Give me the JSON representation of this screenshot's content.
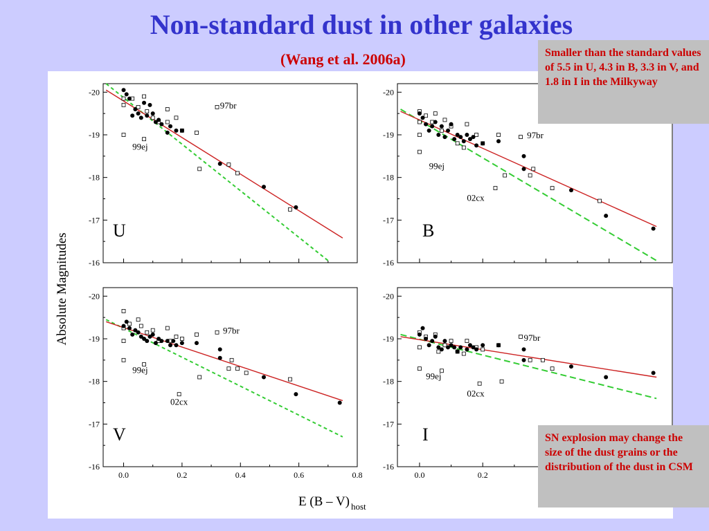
{
  "slide": {
    "title": "Non-standard dust in other galaxies",
    "subtitle": "(Wang et al. 2006a)",
    "note_top": "Smaller than the standard values of 5.5 in U, 4.3 in B, 3.3 in V, and 1.8 in I in the Milkyway",
    "note_bottom": "SN explosion may change the size of the dust grains or the distribution of the dust in CSM"
  },
  "colors": {
    "title": "#3333cc",
    "subtitle": "#cc0000",
    "fit_line": "#cc2222",
    "standard_line": "#33cc33",
    "note_bg": "#c0c0c0",
    "note_text": "#cc0000",
    "background": "#ccccff"
  },
  "chart_data": {
    "type": "scatter",
    "xlabel": "E (B – V)",
    "xlabel_sub": "host",
    "ylabel": "Absolute Magnitudes",
    "xlim": [
      -0.07,
      0.8
    ],
    "ylim": [
      -20.2,
      -16
    ],
    "x_ticks": [
      "0.0",
      "0.2",
      "0.4",
      "0.6",
      "0.8"
    ],
    "y_ticks": [
      "-20",
      "-19",
      "-18",
      "-17",
      "-16"
    ],
    "panels": [
      {
        "band": "U",
        "fit_line": [
          [
            -0.06,
            -20.05
          ],
          [
            0.75,
            -16.58
          ]
        ],
        "standard_line": [
          [
            -0.06,
            -20.2
          ],
          [
            0.7,
            -16.05
          ]
        ],
        "filled": [
          [
            0.0,
            -20.05
          ],
          [
            0.01,
            -19.95
          ],
          [
            0.02,
            -19.85
          ],
          [
            0.03,
            -19.45
          ],
          [
            0.04,
            -19.6
          ],
          [
            0.05,
            -19.5
          ],
          [
            0.06,
            -19.4
          ],
          [
            0.07,
            -19.75
          ],
          [
            0.08,
            -19.45
          ],
          [
            0.09,
            -19.7
          ],
          [
            0.1,
            -19.5
          ],
          [
            0.11,
            -19.3
          ],
          [
            0.12,
            -19.35
          ],
          [
            0.13,
            -19.25
          ],
          [
            0.15,
            -19.05
          ],
          [
            0.16,
            -19.2
          ],
          [
            0.18,
            -19.1
          ],
          [
            0.2,
            -19.1
          ],
          [
            0.33,
            -18.32
          ],
          [
            0.48,
            -17.78
          ],
          [
            0.59,
            -17.3
          ]
        ],
        "open": [
          [
            0.0,
            -19.85
          ],
          [
            0.0,
            -19.7
          ],
          [
            0.0,
            -19.0
          ],
          [
            0.03,
            -19.85
          ],
          [
            0.05,
            -19.65
          ],
          [
            0.07,
            -19.9
          ],
          [
            0.07,
            -18.9
          ],
          [
            0.08,
            -19.55
          ],
          [
            0.1,
            -19.4
          ],
          [
            0.12,
            -19.3
          ],
          [
            0.15,
            -19.6
          ],
          [
            0.15,
            -19.3
          ],
          [
            0.18,
            -19.4
          ],
          [
            0.2,
            -19.1
          ],
          [
            0.25,
            -19.05
          ],
          [
            0.26,
            -18.2
          ],
          [
            0.32,
            -19.65
          ],
          [
            0.36,
            -18.3
          ],
          [
            0.39,
            -18.1
          ],
          [
            0.57,
            -17.25
          ]
        ],
        "labels": [
          {
            "text": "97br",
            "x": 0.33,
            "y": -19.62
          },
          {
            "text": "99ej",
            "x": 0.03,
            "y": -18.65
          }
        ]
      },
      {
        "band": "B",
        "fit_line": [
          [
            -0.06,
            -19.55
          ],
          [
            0.75,
            -16.85
          ]
        ],
        "standard_line": [
          [
            -0.06,
            -19.6
          ],
          [
            0.75,
            -16.05
          ]
        ],
        "filled": [
          [
            0.0,
            -19.5
          ],
          [
            0.01,
            -19.4
          ],
          [
            0.02,
            -19.25
          ],
          [
            0.03,
            -19.1
          ],
          [
            0.04,
            -19.2
          ],
          [
            0.05,
            -19.3
          ],
          [
            0.06,
            -19.0
          ],
          [
            0.07,
            -19.2
          ],
          [
            0.08,
            -18.95
          ],
          [
            0.09,
            -19.1
          ],
          [
            0.1,
            -19.25
          ],
          [
            0.11,
            -18.9
          ],
          [
            0.12,
            -19.0
          ],
          [
            0.13,
            -18.95
          ],
          [
            0.14,
            -18.85
          ],
          [
            0.15,
            -19.0
          ],
          [
            0.16,
            -18.9
          ],
          [
            0.17,
            -18.95
          ],
          [
            0.18,
            -18.75
          ],
          [
            0.2,
            -18.8
          ],
          [
            0.25,
            -18.85
          ],
          [
            0.33,
            -18.5
          ],
          [
            0.33,
            -18.2
          ],
          [
            0.48,
            -17.7
          ],
          [
            0.59,
            -17.1
          ],
          [
            0.74,
            -16.8
          ]
        ],
        "open": [
          [
            0.0,
            -19.55
          ],
          [
            0.0,
            -19.0
          ],
          [
            0.0,
            -18.6
          ],
          [
            0.0,
            -19.3
          ],
          [
            0.02,
            -19.45
          ],
          [
            0.04,
            -19.3
          ],
          [
            0.05,
            -19.5
          ],
          [
            0.07,
            -19.1
          ],
          [
            0.08,
            -19.35
          ],
          [
            0.1,
            -19.2
          ],
          [
            0.12,
            -18.8
          ],
          [
            0.14,
            -18.7
          ],
          [
            0.15,
            -19.25
          ],
          [
            0.18,
            -19.0
          ],
          [
            0.2,
            -18.8
          ],
          [
            0.25,
            -19.0
          ],
          [
            0.27,
            -18.05
          ],
          [
            0.32,
            -18.95
          ],
          [
            0.35,
            -18.05
          ],
          [
            0.36,
            -18.2
          ],
          [
            0.42,
            -17.75
          ],
          [
            0.57,
            -17.45
          ],
          [
            0.24,
            -17.75
          ]
        ],
        "labels": [
          {
            "text": "97br",
            "x": 0.34,
            "y": -18.92
          },
          {
            "text": "99ej",
            "x": 0.03,
            "y": -18.2
          },
          {
            "text": "02cx",
            "x": 0.15,
            "y": -17.45
          }
        ]
      },
      {
        "band": "V",
        "fit_line": [
          [
            -0.06,
            -19.4
          ],
          [
            0.75,
            -17.55
          ]
        ],
        "standard_line": [
          [
            -0.06,
            -19.45
          ],
          [
            0.75,
            -16.7
          ]
        ],
        "filled": [
          [
            0.0,
            -19.3
          ],
          [
            0.01,
            -19.4
          ],
          [
            0.02,
            -19.25
          ],
          [
            0.03,
            -19.1
          ],
          [
            0.04,
            -19.2
          ],
          [
            0.05,
            -19.15
          ],
          [
            0.06,
            -19.05
          ],
          [
            0.07,
            -19.0
          ],
          [
            0.08,
            -18.95
          ],
          [
            0.09,
            -19.05
          ],
          [
            0.1,
            -19.1
          ],
          [
            0.11,
            -18.9
          ],
          [
            0.12,
            -19.0
          ],
          [
            0.13,
            -18.95
          ],
          [
            0.15,
            -18.95
          ],
          [
            0.16,
            -18.85
          ],
          [
            0.17,
            -18.95
          ],
          [
            0.18,
            -18.85
          ],
          [
            0.2,
            -18.9
          ],
          [
            0.25,
            -18.9
          ],
          [
            0.33,
            -18.75
          ],
          [
            0.33,
            -18.55
          ],
          [
            0.48,
            -18.1
          ],
          [
            0.59,
            -17.7
          ],
          [
            0.74,
            -17.5
          ]
        ],
        "open": [
          [
            0.0,
            -19.65
          ],
          [
            0.0,
            -19.25
          ],
          [
            0.0,
            -18.95
          ],
          [
            0.0,
            -18.5
          ],
          [
            0.02,
            -19.35
          ],
          [
            0.05,
            -19.45
          ],
          [
            0.06,
            -19.3
          ],
          [
            0.07,
            -18.4
          ],
          [
            0.08,
            -19.15
          ],
          [
            0.1,
            -19.2
          ],
          [
            0.12,
            -18.95
          ],
          [
            0.15,
            -19.25
          ],
          [
            0.16,
            -18.95
          ],
          [
            0.18,
            -19.05
          ],
          [
            0.2,
            -19.0
          ],
          [
            0.25,
            -19.1
          ],
          [
            0.26,
            -18.1
          ],
          [
            0.32,
            -19.15
          ],
          [
            0.36,
            -18.3
          ],
          [
            0.37,
            -18.5
          ],
          [
            0.39,
            -18.3
          ],
          [
            0.42,
            -18.2
          ],
          [
            0.57,
            -18.05
          ],
          [
            0.19,
            -17.7
          ]
        ],
        "labels": [
          {
            "text": "97br",
            "x": 0.34,
            "y": -19.12
          },
          {
            "text": "99ej",
            "x": 0.03,
            "y": -18.2
          },
          {
            "text": "02cx",
            "x": 0.16,
            "y": -17.45
          }
        ]
      },
      {
        "band": "I",
        "fit_line": [
          [
            -0.06,
            -19.05
          ],
          [
            0.75,
            -18.1
          ]
        ],
        "standard_line": [
          [
            -0.06,
            -19.1
          ],
          [
            0.75,
            -17.6
          ]
        ],
        "filled": [
          [
            0.0,
            -19.1
          ],
          [
            0.01,
            -19.25
          ],
          [
            0.02,
            -19.0
          ],
          [
            0.03,
            -18.85
          ],
          [
            0.04,
            -18.95
          ],
          [
            0.05,
            -19.05
          ],
          [
            0.06,
            -18.8
          ],
          [
            0.07,
            -18.75
          ],
          [
            0.08,
            -18.95
          ],
          [
            0.09,
            -18.8
          ],
          [
            0.1,
            -18.85
          ],
          [
            0.11,
            -18.8
          ],
          [
            0.12,
            -18.7
          ],
          [
            0.13,
            -18.8
          ],
          [
            0.15,
            -18.75
          ],
          [
            0.16,
            -18.85
          ],
          [
            0.17,
            -18.8
          ],
          [
            0.18,
            -18.75
          ],
          [
            0.2,
            -18.85
          ],
          [
            0.25,
            -18.85
          ],
          [
            0.33,
            -18.75
          ],
          [
            0.33,
            -18.5
          ],
          [
            0.48,
            -18.35
          ],
          [
            0.59,
            -18.1
          ],
          [
            0.74,
            -18.2
          ]
        ],
        "open": [
          [
            0.0,
            -19.15
          ],
          [
            0.0,
            -18.8
          ],
          [
            0.0,
            -18.3
          ],
          [
            0.02,
            -19.05
          ],
          [
            0.05,
            -19.1
          ],
          [
            0.06,
            -18.7
          ],
          [
            0.07,
            -18.25
          ],
          [
            0.08,
            -18.85
          ],
          [
            0.1,
            -18.95
          ],
          [
            0.12,
            -18.7
          ],
          [
            0.14,
            -18.65
          ],
          [
            0.15,
            -18.95
          ],
          [
            0.18,
            -18.8
          ],
          [
            0.2,
            -18.75
          ],
          [
            0.25,
            -18.85
          ],
          [
            0.26,
            -18.0
          ],
          [
            0.32,
            -19.05
          ],
          [
            0.35,
            -18.5
          ],
          [
            0.39,
            -18.5
          ],
          [
            0.42,
            -18.3
          ],
          [
            0.19,
            -17.95
          ]
        ],
        "labels": [
          {
            "text": "97br",
            "x": 0.33,
            "y": -18.95
          },
          {
            "text": "99ej",
            "x": 0.02,
            "y": -18.05
          },
          {
            "text": "02cx",
            "x": 0.15,
            "y": -17.65
          }
        ]
      }
    ]
  }
}
